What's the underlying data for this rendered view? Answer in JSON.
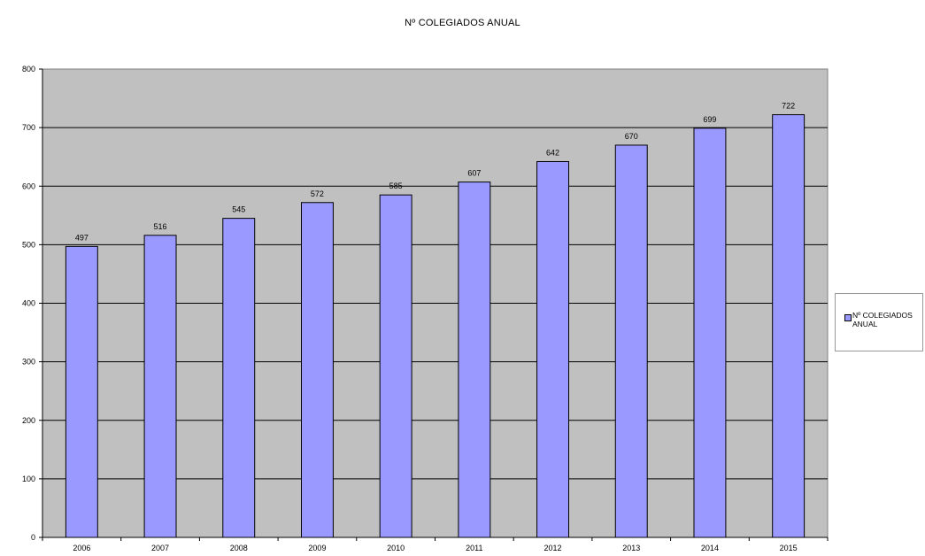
{
  "chart_data": {
    "type": "bar",
    "title": "Nº COLEGIADOS ANUAL",
    "categories": [
      "2006",
      "2007",
      "2008",
      "2009",
      "2010",
      "2011",
      "2012",
      "2013",
      "2014",
      "2015"
    ],
    "series": [
      {
        "name": "Nº COLEGIADOS ANUAL",
        "values": [
          497,
          516,
          545,
          572,
          585,
          607,
          642,
          670,
          699,
          722
        ]
      }
    ],
    "ylim": [
      0,
      800
    ],
    "yticks": [
      0,
      100,
      200,
      300,
      400,
      500,
      600,
      700,
      800
    ],
    "xlabel": "",
    "ylabel": "",
    "grid": true,
    "legend_position": "right",
    "colors": {
      "bar": "#9999ff",
      "plot_background": "#c0c0c0",
      "gridline": "#000000"
    }
  }
}
